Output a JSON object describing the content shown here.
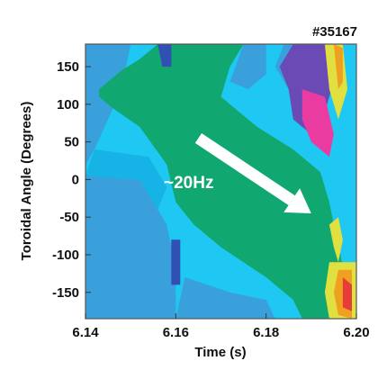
{
  "chart_data": {
    "type": "heatmap",
    "title": "#35167",
    "xlabel": "Time (s)",
    "ylabel": "Toroidal Angle (Degrees)",
    "xlim": [
      6.14,
      6.2
    ],
    "ylim": [
      -185,
      180
    ],
    "x_ticks": [
      6.14,
      6.16,
      6.18,
      6.2
    ],
    "x_tick_labels": [
      "6.14",
      "6.16",
      "6.18",
      "6.20"
    ],
    "y_ticks": [
      150,
      100,
      50,
      0,
      -50,
      -100,
      -150
    ],
    "y_tick_labels": [
      "150",
      "100",
      "50",
      "0",
      "-50",
      "-100",
      "-150"
    ],
    "annotation": {
      "text": "~20Hz",
      "arrow_from": [
        6.165,
        55
      ],
      "arrow_to": [
        6.19,
        -45
      ]
    },
    "colors": {
      "background": "#1ec8f2",
      "low": "#3aa0dc",
      "mid_low": "#16b4e6",
      "mid": "#10a870",
      "high": "#e0e040",
      "higher": "#f0a020",
      "peak": "#e63c3c",
      "magenta": "#ea3ca0",
      "violet": "#6a4ab4",
      "dark_blue": "#3050b4"
    },
    "regions": [
      {
        "level": "low",
        "points": [
          [
            6.14,
            180
          ],
          [
            6.15,
            180
          ],
          [
            6.148,
            120
          ],
          [
            6.142,
            40
          ],
          [
            6.14,
            20
          ]
        ]
      },
      {
        "level": "low",
        "points": [
          [
            6.14,
            5
          ],
          [
            6.152,
            0
          ],
          [
            6.156,
            -40
          ],
          [
            6.158,
            -60
          ],
          [
            6.16,
            -120
          ],
          [
            6.16,
            -185
          ],
          [
            6.14,
            -185
          ]
        ]
      },
      {
        "level": "low",
        "points": [
          [
            6.16,
            -185
          ],
          [
            6.162,
            -130
          ],
          [
            6.172,
            -150
          ],
          [
            6.18,
            -160
          ],
          [
            6.182,
            -185
          ]
        ]
      },
      {
        "level": "mid_low",
        "points": [
          [
            6.142,
            40
          ],
          [
            6.154,
            30
          ],
          [
            6.158,
            -10
          ],
          [
            6.156,
            -40
          ],
          [
            6.152,
            0
          ],
          [
            6.14,
            5
          ]
        ]
      },
      {
        "level": "mid",
        "points": [
          [
            6.143,
            120
          ],
          [
            6.148,
            145
          ],
          [
            6.152,
            160
          ],
          [
            6.156,
            180
          ],
          [
            6.175,
            180
          ],
          [
            6.172,
            150
          ],
          [
            6.17,
            110
          ],
          [
            6.178,
            70
          ],
          [
            6.186,
            40
          ],
          [
            6.192,
            10
          ],
          [
            6.194,
            -30
          ],
          [
            6.195,
            -60
          ],
          [
            6.196,
            -80
          ],
          [
            6.197,
            -120
          ],
          [
            6.2,
            -150
          ],
          [
            6.2,
            -185
          ],
          [
            6.188,
            -185
          ],
          [
            6.186,
            -160
          ],
          [
            6.18,
            -130
          ],
          [
            6.17,
            -90
          ],
          [
            6.164,
            -60
          ],
          [
            6.16,
            -30
          ],
          [
            6.158,
            20
          ],
          [
            6.152,
            70
          ],
          [
            6.146,
            95
          ],
          [
            6.143,
            110
          ]
        ]
      },
      {
        "level": "low",
        "points": [
          [
            6.175,
            180
          ],
          [
            6.18,
            180
          ],
          [
            6.18,
            140
          ],
          [
            6.176,
            120
          ],
          [
            6.172,
            130
          ]
        ]
      },
      {
        "level": "low",
        "points": [
          [
            6.184,
            180
          ],
          [
            6.196,
            180
          ],
          [
            6.194,
            120
          ],
          [
            6.19,
            90
          ],
          [
            6.186,
            110
          ],
          [
            6.182,
            150
          ]
        ]
      },
      {
        "level": "violet",
        "points": [
          [
            6.186,
            180
          ],
          [
            6.194,
            180
          ],
          [
            6.195,
            130
          ],
          [
            6.193,
            90
          ],
          [
            6.19,
            60
          ],
          [
            6.186,
            80
          ],
          [
            6.185,
            120
          ],
          [
            6.183,
            150
          ]
        ]
      },
      {
        "level": "magenta",
        "points": [
          [
            6.188,
            120
          ],
          [
            6.193,
            110
          ],
          [
            6.195,
            60
          ],
          [
            6.194,
            30
          ],
          [
            6.19,
            50
          ],
          [
            6.188,
            80
          ]
        ]
      },
      {
        "level": "high",
        "points": [
          [
            6.193,
            180
          ],
          [
            6.197,
            180
          ],
          [
            6.198,
            120
          ],
          [
            6.196,
            80
          ],
          [
            6.194,
            120
          ]
        ]
      },
      {
        "level": "higher",
        "points": [
          [
            6.195,
            180
          ],
          [
            6.197,
            175
          ],
          [
            6.197,
            130
          ],
          [
            6.196,
            120
          ]
        ]
      },
      {
        "level": "high",
        "points": [
          [
            6.194,
            -60
          ],
          [
            6.196,
            -50
          ],
          [
            6.197,
            -80
          ],
          [
            6.196,
            -110
          ],
          [
            6.195,
            -90
          ]
        ]
      },
      {
        "level": "high",
        "points": [
          [
            6.194,
            -110
          ],
          [
            6.2,
            -110
          ],
          [
            6.2,
            -185
          ],
          [
            6.194,
            -185
          ],
          [
            6.193,
            -150
          ]
        ]
      },
      {
        "level": "higher",
        "points": [
          [
            6.196,
            -120
          ],
          [
            6.199,
            -120
          ],
          [
            6.199,
            -185
          ],
          [
            6.196,
            -180
          ],
          [
            6.195,
            -150
          ]
        ]
      },
      {
        "level": "peak",
        "points": [
          [
            6.197,
            -130
          ],
          [
            6.199,
            -140
          ],
          [
            6.199,
            -175
          ],
          [
            6.197,
            -170
          ]
        ]
      },
      {
        "level": "dark_blue",
        "points": [
          [
            6.156,
            180
          ],
          [
            6.159,
            180
          ],
          [
            6.159,
            150
          ],
          [
            6.157,
            150
          ]
        ]
      },
      {
        "level": "dark_blue",
        "points": [
          [
            6.159,
            -80
          ],
          [
            6.161,
            -80
          ],
          [
            6.161,
            -140
          ],
          [
            6.159,
            -140
          ]
        ]
      }
    ]
  }
}
